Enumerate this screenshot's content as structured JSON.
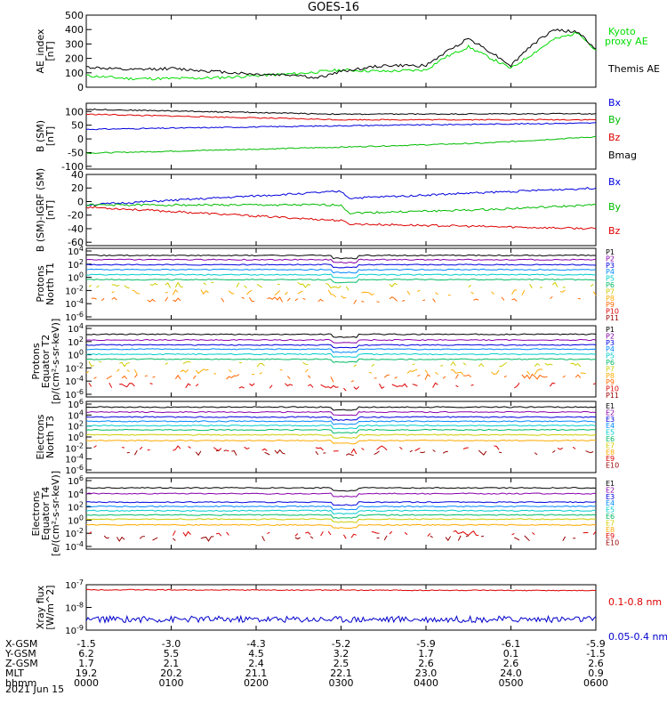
{
  "title": "GOES-16",
  "date": "2021 Jun 15",
  "ephemeris": {
    "row_labels": [
      "X-GSM",
      "Y-GSM",
      "Z-GSM",
      "MLT",
      "hhmm"
    ],
    "columns": [
      [
        "-1.5",
        "6.2",
        "1.7",
        "19.2",
        "0000"
      ],
      [
        "-3.0",
        "5.5",
        "2.1",
        "20.2",
        "0100"
      ],
      [
        "-4.3",
        "4.5",
        "2.4",
        "21.1",
        "0200"
      ],
      [
        "-5.2",
        "3.2",
        "2.5",
        "22.1",
        "0300"
      ],
      [
        "-5.9",
        "1.7",
        "2.6",
        "23.0",
        "0400"
      ],
      [
        "-6.1",
        "0.1",
        "2.6",
        "24.0",
        "0500"
      ],
      [
        "-5.9",
        "-1.5",
        "2.6",
        "0.9",
        "0600"
      ]
    ]
  },
  "chart_data": [
    {
      "type": "line",
      "ylabel": "AE_index [nT]",
      "ylim": [
        0,
        500
      ],
      "ytick_labels": [
        "0",
        "100",
        "200",
        "300",
        "400",
        "500"
      ],
      "x_hours": [
        0,
        6
      ],
      "series": [
        {
          "name": "Kyoto proxy AE",
          "color": "#00dd00",
          "x": [
            0,
            0.5,
            1.0,
            1.5,
            2.0,
            2.5,
            3.0,
            3.5,
            4.0,
            4.2,
            4.5,
            4.8,
            5.0,
            5.2,
            5.5,
            5.8,
            6.0
          ],
          "y": [
            80,
            60,
            60,
            65,
            80,
            95,
            120,
            110,
            120,
            200,
            280,
            190,
            130,
            210,
            330,
            380,
            250
          ]
        },
        {
          "name": "Themis AE",
          "color": "#000000",
          "x": [
            0,
            0.5,
            1.0,
            1.5,
            2.0,
            2.5,
            2.7,
            3.0,
            3.5,
            4.0,
            4.2,
            4.5,
            4.8,
            5.0,
            5.2,
            5.5,
            5.8,
            6.0
          ],
          "y": [
            140,
            120,
            130,
            110,
            90,
            85,
            60,
            110,
            150,
            150,
            230,
            340,
            230,
            150,
            270,
            400,
            380,
            260
          ]
        }
      ]
    },
    {
      "type": "line",
      "ylabel": "B (SM) [nT]",
      "ylim": [
        -110,
        130
      ],
      "ytick_labels": [
        "-100",
        "-50",
        "0",
        "50",
        "100"
      ],
      "series": [
        {
          "name": "Bx",
          "color": "#0000dd",
          "x": [
            0,
            3,
            6
          ],
          "y": [
            35,
            48,
            58
          ]
        },
        {
          "name": "By",
          "color": "#00bb00",
          "x": [
            0,
            3,
            4.7,
            6
          ],
          "y": [
            -52,
            -30,
            -15,
            8
          ]
        },
        {
          "name": "Bz",
          "color": "#dd0000",
          "x": [
            0,
            3,
            6
          ],
          "y": [
            90,
            70,
            70
          ]
        },
        {
          "name": "Bmag",
          "color": "#000000",
          "x": [
            0,
            3,
            6
          ],
          "y": [
            108,
            90,
            92
          ]
        }
      ]
    },
    {
      "type": "line",
      "ylabel": "B (SM)-IGRF (SM) [nT]",
      "ylim": [
        -65,
        40
      ],
      "ytick_labels": [
        "-60",
        "-40",
        "-20",
        "0",
        "20",
        "40"
      ],
      "series": [
        {
          "name": "Bx",
          "color": "#0000dd",
          "x": [
            0,
            3,
            3.1,
            6
          ],
          "y": [
            -5,
            15,
            5,
            20
          ]
        },
        {
          "name": "By",
          "color": "#00bb00",
          "x": [
            0,
            3,
            3.1,
            4.7,
            6
          ],
          "y": [
            -5,
            -5,
            -17,
            -12,
            -5
          ]
        },
        {
          "name": "Bz",
          "color": "#dd0000",
          "x": [
            0,
            3,
            3.1,
            6
          ],
          "y": [
            -8,
            -28,
            -33,
            -40
          ]
        }
      ]
    },
    {
      "type": "line",
      "ylabel": "Protons North T1",
      "yscale": "log",
      "ytick_labels": [
        "10^-6",
        "10^-4",
        "10^-2",
        "10^0",
        "10^2",
        "10^4"
      ],
      "legend": [
        "P1",
        "P2",
        "P3",
        "P4",
        "P5",
        "P6",
        "P7",
        "P8",
        "P9",
        "P10",
        "P11"
      ]
    },
    {
      "type": "line",
      "ylabel": "Protons Equator T2 [p/(cm^2-s-sr-keV)]",
      "yscale": "log",
      "ytick_labels": [
        "10^-6",
        "10^-4",
        "10^-2",
        "10^0",
        "10^2",
        "10^4"
      ],
      "legend": [
        "P1",
        "P2",
        "P3",
        "P4",
        "P5",
        "P6",
        "P7",
        "P8",
        "P9",
        "P10",
        "P11"
      ]
    },
    {
      "type": "line",
      "ylabel": "Electrons North T3",
      "yscale": "log",
      "ytick_labels": [
        "10^-6",
        "10^-4",
        "10^-2",
        "10^0",
        "10^2",
        "10^4",
        "10^6"
      ],
      "legend": [
        "E1",
        "E2",
        "E3",
        "E4",
        "E5",
        "E6",
        "E7",
        "E8",
        "E9",
        "E10"
      ]
    },
    {
      "type": "line",
      "ylabel": "Electrons Equator T4 [e/(cm^2-s-sr-keV)]",
      "yscale": "log",
      "ytick_labels": [
        "10^-4",
        "10^-2",
        "10^0",
        "10^2",
        "10^4",
        "10^6"
      ],
      "legend": [
        "E1",
        "E2",
        "E3",
        "E4",
        "E5",
        "E6",
        "E7",
        "E8",
        "E9",
        "E10"
      ]
    },
    {
      "type": "line",
      "ylabel": "Xray flux [W/m^2]",
      "yscale": "log",
      "ylim": [
        1e-09,
        1e-07
      ],
      "ytick_labels": [
        "10^-9",
        "10^-8",
        "10^-7"
      ],
      "series": [
        {
          "name": "0.1-0.8 nm",
          "color": "#dd0000",
          "x": [
            0,
            6
          ],
          "y": [
            6e-08,
            5.5e-08
          ]
        },
        {
          "name": "0.05-0.4 nm",
          "color": "#0000cc",
          "x": [
            0,
            6
          ],
          "y": [
            3e-09,
            3e-09
          ]
        }
      ]
    }
  ],
  "legend_text": {
    "ae": [
      "Kyoto",
      "proxy AE",
      "Themis AE"
    ],
    "bsm": [
      "Bx",
      "By",
      "Bz",
      "Bmag"
    ],
    "bdiff": [
      "Bx",
      "By",
      "Bz"
    ],
    "xray": [
      "0.1-0.8 nm",
      "0.05-0.4 nm"
    ]
  },
  "colors": {
    "p_legend": [
      "#000000",
      "#8800aa",
      "#0000dd",
      "#0088ff",
      "#00cccc",
      "#00bb66",
      "#cccc00",
      "#ffaa00",
      "#ff6600",
      "#dd0000",
      "#990000"
    ],
    "e_legend": [
      "#000000",
      "#8800aa",
      "#0000dd",
      "#0088ff",
      "#00cccc",
      "#00bb66",
      "#cccc00",
      "#ffaa00",
      "#dd0000",
      "#990000"
    ]
  }
}
